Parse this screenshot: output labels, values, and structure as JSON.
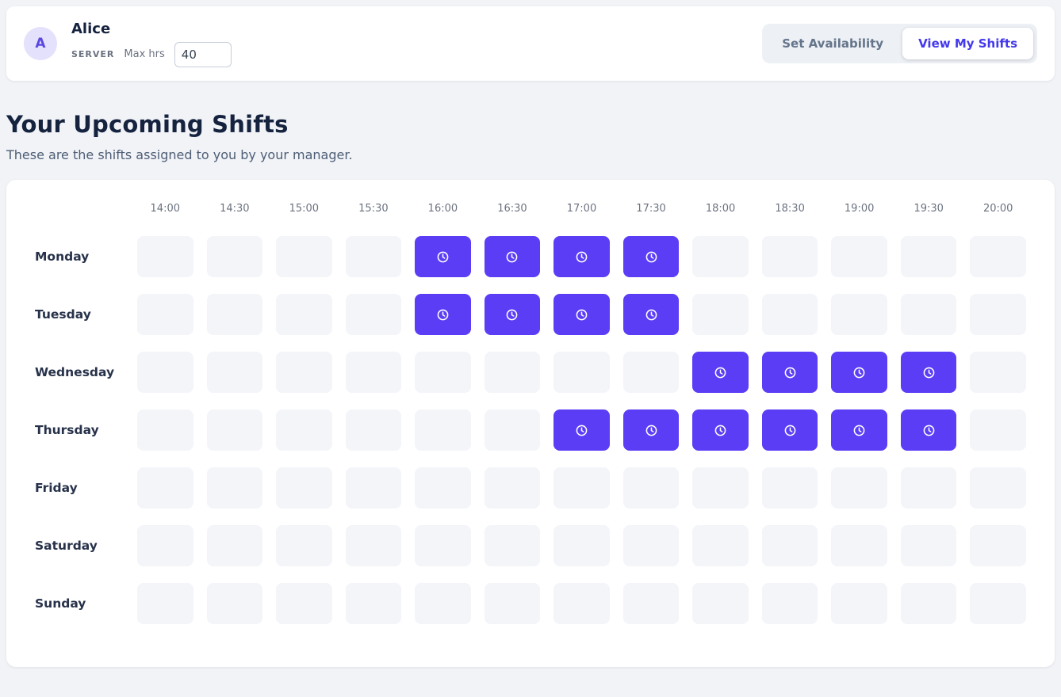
{
  "colors": {
    "accent": "#5b3df6",
    "accent_text": "#4338ec",
    "empty_cell": "#f3f5f9",
    "page_bg": "#f1f3f7"
  },
  "header": {
    "avatar_letter": "A",
    "name": "Alice",
    "role": "SERVER",
    "max_hrs_label": "Max hrs",
    "max_hrs_value": "40",
    "set_availability_label": "Set Availability",
    "view_my_shifts_label": "View My Shifts"
  },
  "page": {
    "title": "Your Upcoming Shifts",
    "subtitle": "These are the shifts assigned to you by your manager."
  },
  "schedule": {
    "times": [
      "14:00",
      "14:30",
      "15:00",
      "15:30",
      "16:00",
      "16:30",
      "17:00",
      "17:30",
      "18:00",
      "18:30",
      "19:00",
      "19:30",
      "20:00"
    ],
    "days": [
      "Monday",
      "Tuesday",
      "Wednesday",
      "Thursday",
      "Friday",
      "Saturday",
      "Sunday"
    ],
    "shifts": {
      "Monday": [
        "16:00",
        "16:30",
        "17:00",
        "17:30"
      ],
      "Tuesday": [
        "16:00",
        "16:30",
        "17:00",
        "17:30"
      ],
      "Wednesday": [
        "18:00",
        "18:30",
        "19:00",
        "19:30"
      ],
      "Thursday": [
        "17:00",
        "17:30",
        "18:00",
        "18:30",
        "19:00",
        "19:30"
      ],
      "Friday": [],
      "Saturday": [],
      "Sunday": []
    }
  }
}
